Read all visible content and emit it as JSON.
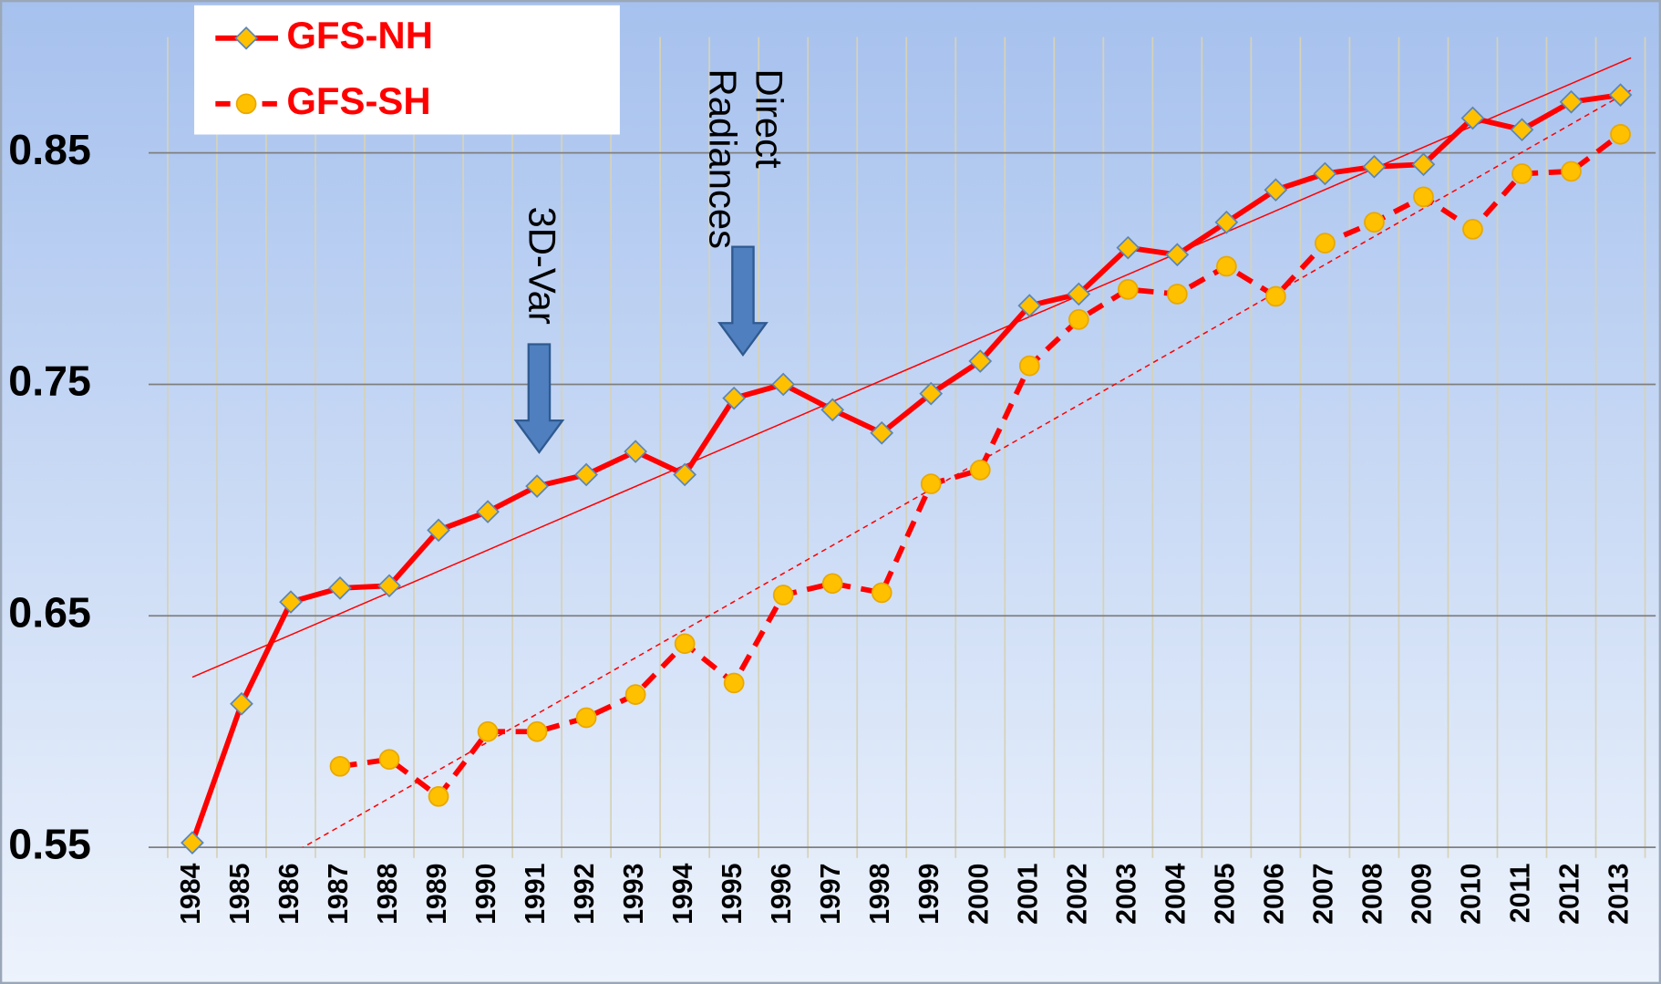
{
  "chart_data": {
    "type": "line",
    "categories": [
      "1984",
      "1985",
      "1986",
      "1987",
      "1988",
      "1989",
      "1990",
      "1991",
      "1992",
      "1993",
      "1994",
      "1995",
      "1996",
      "1997",
      "1998",
      "1999",
      "2000",
      "2001",
      "2002",
      "2003",
      "2004",
      "2005",
      "2006",
      "2007",
      "2008",
      "2009",
      "2010",
      "2011",
      "2012",
      "2013"
    ],
    "series": [
      {
        "name": "GFS-NH",
        "color": "#ff0000",
        "marker": "diamond",
        "dashed": false,
        "values": [
          0.552,
          0.612,
          0.656,
          0.662,
          0.663,
          0.687,
          0.695,
          0.706,
          0.711,
          0.721,
          0.711,
          0.744,
          0.75,
          0.739,
          0.729,
          0.746,
          0.76,
          0.784,
          0.789,
          0.809,
          0.806,
          0.82,
          0.834,
          0.841,
          0.844,
          0.845,
          0.865,
          0.86,
          0.872,
          0.875
        ]
      },
      {
        "name": "GFS-SH",
        "color": "#ff0000",
        "marker": "circle",
        "dashed": true,
        "values": [
          null,
          null,
          null,
          0.585,
          0.588,
          0.572,
          0.6,
          0.6,
          0.606,
          0.616,
          0.638,
          0.621,
          0.659,
          0.664,
          0.66,
          0.707,
          0.713,
          0.758,
          0.778,
          0.791,
          0.789,
          0.801,
          0.788,
          0.811,
          0.82,
          0.831,
          0.817,
          0.841,
          0.842,
          0.858
        ]
      }
    ],
    "ylim": [
      0.55,
      0.9
    ],
    "yticks": [
      0.55,
      0.65,
      0.75,
      0.85
    ],
    "grid": true,
    "trendline": true,
    "legend": "top-left",
    "annotations": [
      {
        "lines": [
          "3D-Var"
        ]
      },
      {
        "lines": [
          "Direct",
          "Radiances"
        ]
      }
    ]
  }
}
